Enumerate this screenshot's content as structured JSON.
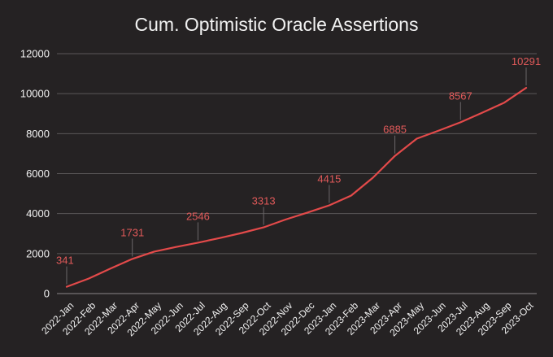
{
  "chart_data": {
    "type": "line",
    "title": "Cum. Optimistic Oracle Assertions",
    "xlabel": "",
    "ylabel": "",
    "ylim": [
      0,
      12000
    ],
    "yticks": [
      0,
      2000,
      4000,
      6000,
      8000,
      10000,
      12000
    ],
    "grid": true,
    "categories": [
      "2022-Jan",
      "2022-Feb",
      "2022-Mar",
      "2022-Apr",
      "2022-May",
      "2022-Jun",
      "2022-Jul",
      "2022-Aug",
      "2022-Sep",
      "2022-Oct",
      "2022-Nov",
      "2022-Dec",
      "2023-Jan",
      "2023-Feb",
      "2023-Mar",
      "2023-Apr",
      "2023-May",
      "2023-Jun",
      "2023-Jul",
      "2023-Aug",
      "2023-Sep",
      "2023-Oct"
    ],
    "series": [
      {
        "values": [
          341,
          750,
          1250,
          1731,
          2100,
          2330,
          2546,
          2780,
          3030,
          3313,
          3700,
          4050,
          4415,
          4900,
          5800,
          6885,
          7750,
          8150,
          8567,
          9050,
          9550,
          10291
        ],
        "color": "#e34a4a"
      }
    ],
    "data_labels": [
      {
        "index": 0,
        "text": "341"
      },
      {
        "index": 3,
        "text": "1731"
      },
      {
        "index": 6,
        "text": "2546"
      },
      {
        "index": 9,
        "text": "3313"
      },
      {
        "index": 12,
        "text": "4415"
      },
      {
        "index": 15,
        "text": "6885"
      },
      {
        "index": 18,
        "text": "8567"
      },
      {
        "index": 21,
        "text": "10291"
      }
    ],
    "colors": {
      "background": "#252223",
      "grid": "#5a5758",
      "text": "#f2f2f2",
      "line": "#e34a4a",
      "label": "#e25a5a"
    }
  }
}
